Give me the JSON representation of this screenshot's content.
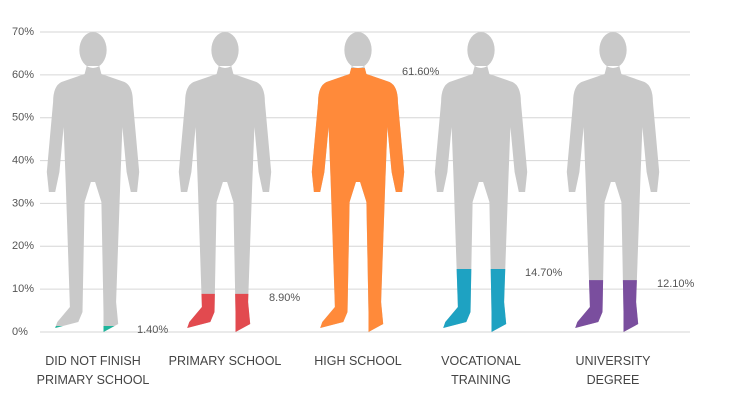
{
  "chart_data": {
    "type": "pictogram",
    "categories": [
      "DID NOT FINISH\nPRIMARY SCHOOL",
      "PRIMARY SCHOOL",
      "HIGH SCHOOL",
      "VOCATIONAL\nTRAINING",
      "UNIVERSITY\nDEGREE"
    ],
    "values": [
      1.4,
      8.9,
      61.6,
      14.7,
      12.1
    ],
    "value_labels": [
      "1.40%",
      "8.90%",
      "61.60%",
      "14.70%",
      "12.10%"
    ],
    "colors": [
      "#1fb59c",
      "#e24a4f",
      "#ff8a3a",
      "#1ea2c2",
      "#7a4e9e"
    ],
    "base_color": "#c9c9c9",
    "ylim": [
      0,
      70
    ],
    "yticks": [
      {
        "value": 0,
        "label": "0%"
      },
      {
        "value": 10,
        "label": "10%"
      },
      {
        "value": 20,
        "label": "20%"
      },
      {
        "value": 30,
        "label": "30%"
      },
      {
        "value": 40,
        "label": "40%"
      },
      {
        "value": 50,
        "label": "50%"
      },
      {
        "value": 60,
        "label": "60%"
      },
      {
        "value": 70,
        "label": "70%"
      }
    ],
    "grid": true
  }
}
